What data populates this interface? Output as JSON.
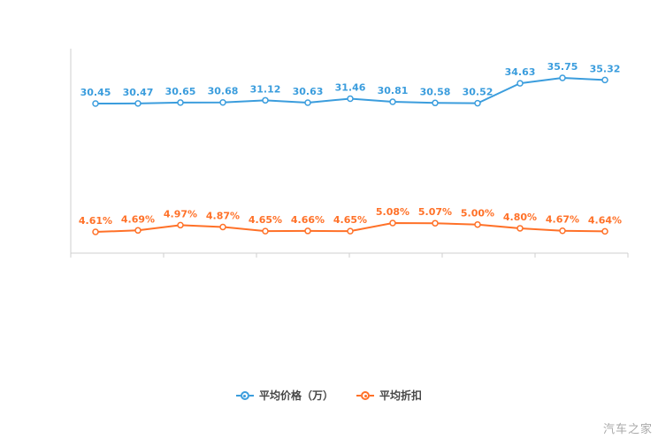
{
  "chart_data": {
    "type": "line",
    "categories": [
      "",
      "",
      "",
      "",
      "",
      "",
      "",
      "",
      "",
      "",
      "",
      "",
      ""
    ],
    "x_labels_visible": false,
    "grid": false,
    "legend_position": "bottom",
    "series": [
      {
        "name": "平均价格（万）",
        "color": "#3b9ddd",
        "values": [
          30.45,
          30.47,
          30.65,
          30.68,
          31.12,
          30.63,
          31.46,
          30.81,
          30.58,
          30.52,
          34.63,
          35.75,
          35.32
        ],
        "decimals": 2,
        "label_suffix": ""
      },
      {
        "name": "平均折扣",
        "color": "#ff7128",
        "values": [
          4.61,
          4.69,
          4.97,
          4.87,
          4.65,
          4.66,
          4.65,
          5.08,
          5.07,
          5.0,
          4.8,
          4.67,
          4.64
        ],
        "decimals": 2,
        "label_suffix": "%"
      }
    ],
    "title": "",
    "xlabel": "",
    "ylabel": ""
  },
  "legend": {
    "items": [
      {
        "label": "平均价格（万）",
        "color": "#3b9ddd"
      },
      {
        "label": "平均折扣",
        "color": "#ff7128"
      }
    ]
  },
  "watermark": "汽车之家",
  "axis": {
    "color": "#cfcfcf"
  }
}
